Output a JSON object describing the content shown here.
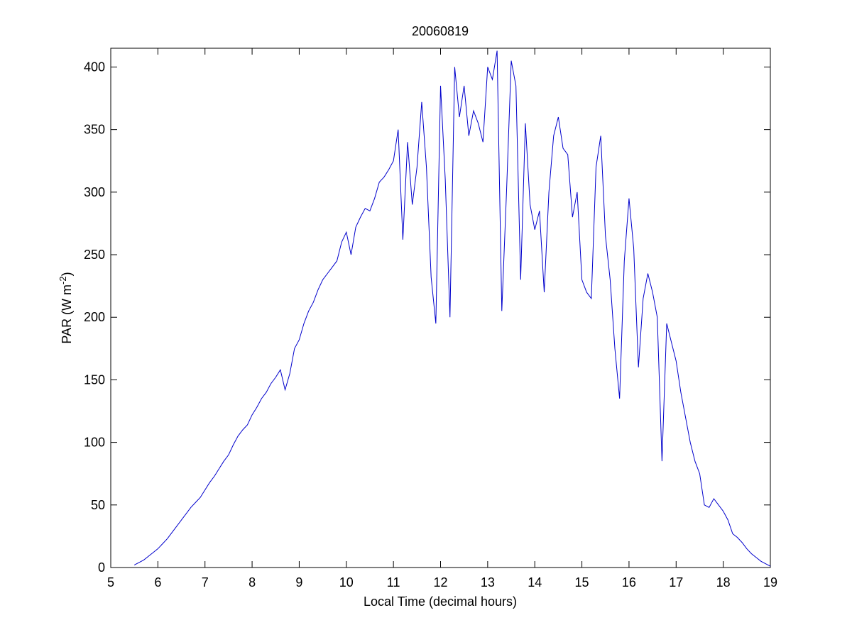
{
  "chart_data": {
    "type": "line",
    "title": "20060819",
    "xlabel": "Local Time (decimal hours)",
    "ylabel": {
      "text": "PAR (W m",
      "superscript": "-2",
      "suffix": ")"
    },
    "xlim": [
      5,
      19
    ],
    "xticks": [
      5,
      6,
      7,
      8,
      9,
      10,
      11,
      12,
      13,
      14,
      15,
      16,
      17,
      18,
      19
    ],
    "ylim": [
      0,
      415
    ],
    "yticks": [
      0,
      50,
      100,
      150,
      200,
      250,
      300,
      350,
      400
    ],
    "grid": false,
    "x": [
      5.5,
      5.6,
      5.7,
      5.8,
      5.9,
      6.0,
      6.1,
      6.2,
      6.3,
      6.4,
      6.5,
      6.6,
      6.7,
      6.8,
      6.9,
      7.0,
      7.1,
      7.2,
      7.3,
      7.4,
      7.5,
      7.6,
      7.7,
      7.8,
      7.9,
      8.0,
      8.1,
      8.2,
      8.3,
      8.4,
      8.5,
      8.6,
      8.7,
      8.8,
      8.9,
      9.0,
      9.1,
      9.2,
      9.3,
      9.4,
      9.5,
      9.6,
      9.7,
      9.8,
      9.9,
      10.0,
      10.1,
      10.2,
      10.3,
      10.4,
      10.5,
      10.6,
      10.7,
      10.8,
      10.9,
      11.0,
      11.1,
      11.2,
      11.3,
      11.4,
      11.5,
      11.6,
      11.7,
      11.8,
      11.9,
      12.0,
      12.1,
      12.2,
      12.3,
      12.4,
      12.5,
      12.6,
      12.7,
      12.8,
      12.9,
      13.0,
      13.1,
      13.2,
      13.3,
      13.4,
      13.5,
      13.6,
      13.7,
      13.8,
      13.9,
      14.0,
      14.1,
      14.2,
      14.3,
      14.4,
      14.5,
      14.6,
      14.7,
      14.8,
      14.9,
      15.0,
      15.1,
      15.2,
      15.3,
      15.4,
      15.5,
      15.6,
      15.7,
      15.8,
      15.9,
      16.0,
      16.1,
      16.2,
      16.3,
      16.4,
      16.5,
      16.6,
      16.7,
      16.8,
      16.9,
      17.0,
      17.1,
      17.2,
      17.3,
      17.4,
      17.5,
      17.6,
      17.7,
      17.8,
      17.9,
      18.0,
      18.1,
      18.2,
      18.3,
      18.4,
      18.5,
      18.6,
      18.7,
      18.8,
      18.9,
      19.0
    ],
    "series": [
      {
        "color": "#0000cc",
        "values": [
          2,
          4,
          6,
          9,
          12,
          15,
          19,
          23,
          28,
          33,
          38,
          43,
          48,
          52,
          56,
          62,
          68,
          73,
          79,
          85,
          90,
          98,
          105,
          110,
          114,
          122,
          128,
          135,
          140,
          147,
          152,
          158,
          142,
          155,
          175,
          182,
          195,
          205,
          212,
          222,
          230,
          235,
          240,
          245,
          260,
          268,
          250,
          272,
          280,
          287,
          285,
          295,
          308,
          312,
          318,
          325,
          350,
          262,
          340,
          290,
          320,
          372,
          320,
          232,
          195,
          385,
          310,
          200,
          400,
          360,
          385,
          345,
          365,
          355,
          340,
          400,
          390,
          413,
          205,
          300,
          405,
          385,
          230,
          355,
          290,
          270,
          285,
          220,
          300,
          345,
          360,
          335,
          330,
          280,
          300,
          230,
          220,
          215,
          320,
          345,
          265,
          230,
          175,
          135,
          245,
          295,
          255,
          160,
          215,
          235,
          220,
          200,
          85,
          195,
          180,
          165,
          140,
          120,
          100,
          85,
          75,
          50,
          48,
          55,
          50,
          45,
          38,
          27,
          24,
          20,
          15,
          11,
          8,
          5,
          3,
          1
        ]
      }
    ]
  }
}
